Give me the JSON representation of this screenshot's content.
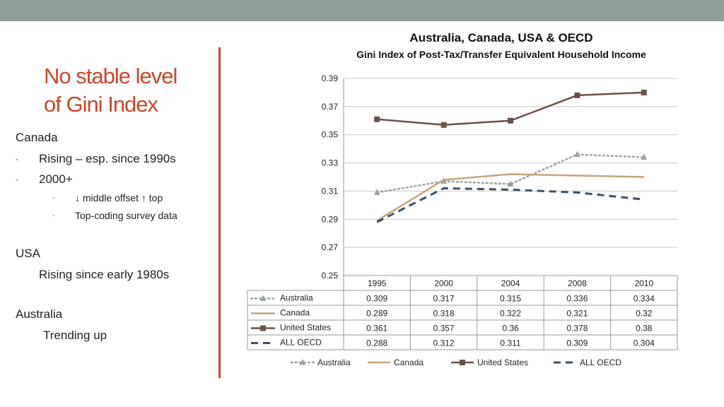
{
  "slide": {
    "title_line1": "No stable level",
    "title_line2": "of Gini Index",
    "bullets": {
      "canada": "Canada",
      "canada_1": "Rising – esp. since 1990s",
      "canada_2": "2000+",
      "canada_2a": "↓ middle offset ↑ top",
      "canada_2b": "Top-coding survey data",
      "usa": "USA",
      "usa_1": "Rising since early 1980s",
      "australia": "Australia",
      "australia_1": "Trending up"
    },
    "dash": "-"
  },
  "chart_data": {
    "type": "line",
    "title": "Australia, Canada, USA & OECD",
    "subtitle": "Gini Index of Post-Tax/Transfer Equivalent Household Income",
    "categories": [
      "1995",
      "2000",
      "2004",
      "2008",
      "2010"
    ],
    "ylim": [
      0.25,
      0.39
    ],
    "yticks": [
      "0.25",
      "0.27",
      "0.29",
      "0.31",
      "0.33",
      "0.35",
      "0.37",
      "0.39"
    ],
    "grid": true,
    "legend": "bottom",
    "series": [
      {
        "name": "Australia",
        "values": [
          0.309,
          0.317,
          0.315,
          0.336,
          0.334
        ],
        "labels": [
          "0.309",
          "0.317",
          "0.315",
          "0.336",
          "0.334"
        ],
        "color": "#9aa59e",
        "style": "dotted-triangle"
      },
      {
        "name": "Canada",
        "values": [
          0.289,
          0.318,
          0.322,
          0.321,
          0.32
        ],
        "labels": [
          "0.289",
          "0.318",
          "0.322",
          "0.321",
          "0.32"
        ],
        "color": "#c4a47c",
        "style": "solid"
      },
      {
        "name": "United States",
        "values": [
          0.361,
          0.357,
          0.36,
          0.378,
          0.38
        ],
        "labels": [
          "0.361",
          "0.357",
          "0.36",
          "0.378",
          "0.38"
        ],
        "color": "#6b5149",
        "style": "solid-square"
      },
      {
        "name": "ALL OECD",
        "values": [
          0.288,
          0.312,
          0.311,
          0.309,
          0.304
        ],
        "labels": [
          "0.288",
          "0.312",
          "0.311",
          "0.309",
          "0.304"
        ],
        "color": "#3d5060",
        "style": "dashed"
      }
    ]
  }
}
